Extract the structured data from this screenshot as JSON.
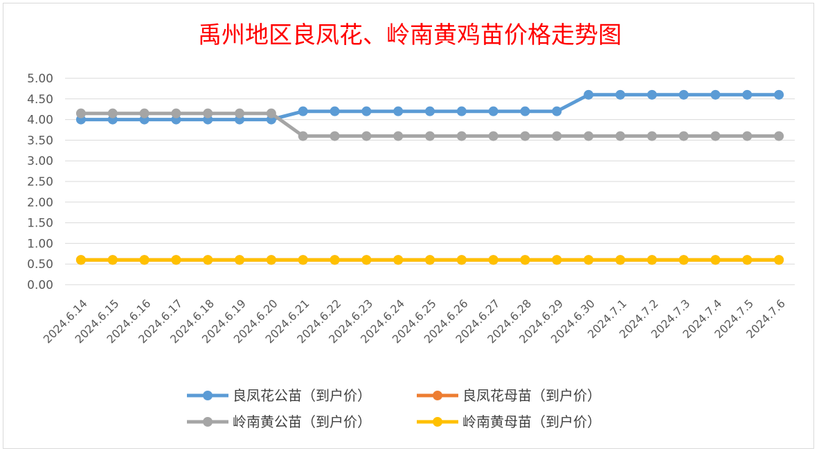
{
  "chart_data": {
    "type": "line",
    "title": "禹州地区良凤花、岭南黄鸡苗价格走势图",
    "xlabel": "",
    "ylabel": "",
    "ylim": [
      0,
      5
    ],
    "y_ticks": [
      "0.00",
      "0.50",
      "1.00",
      "1.50",
      "2.00",
      "2.50",
      "3.00",
      "3.50",
      "4.00",
      "4.50",
      "5.00"
    ],
    "grid": true,
    "legend_position": "bottom",
    "categories": [
      "2024.6.14",
      "2024.6.15",
      "2024.6.16",
      "2024.6.17",
      "2024.6.18",
      "2024.6.19",
      "2024.6.20",
      "2024.6.21",
      "2024.6.22",
      "2024.6.23",
      "2024.6.24",
      "2024.6.25",
      "2024.6.26",
      "2024.6.27",
      "2024.6.28",
      "2024.6.29",
      "2024.6.30",
      "2024.7.1",
      "2024.7.2",
      "2024.7.3",
      "2024.7.4",
      "2024.7.5",
      "2024.7.6"
    ],
    "series": [
      {
        "name": "良凤花公苗（到户价）",
        "color": "#5b9bd5",
        "values": [
          4.0,
          4.0,
          4.0,
          4.0,
          4.0,
          4.0,
          4.0,
          4.2,
          4.2,
          4.2,
          4.2,
          4.2,
          4.2,
          4.2,
          4.2,
          4.2,
          4.6,
          4.6,
          4.6,
          4.6,
          4.6,
          4.6,
          4.6
        ]
      },
      {
        "name": "良凤花母苗（到户价）",
        "color": "#ed7d31",
        "values": [
          0.6,
          0.6,
          0.6,
          0.6,
          0.6,
          0.6,
          0.6,
          0.6,
          0.6,
          0.6,
          0.6,
          0.6,
          0.6,
          0.6,
          0.6,
          0.6,
          0.6,
          0.6,
          0.6,
          0.6,
          0.6,
          0.6,
          0.6
        ]
      },
      {
        "name": "岭南黄公苗（到户价）",
        "color": "#a5a5a5",
        "values": [
          4.15,
          4.15,
          4.15,
          4.15,
          4.15,
          4.15,
          4.15,
          3.6,
          3.6,
          3.6,
          3.6,
          3.6,
          3.6,
          3.6,
          3.6,
          3.6,
          3.6,
          3.6,
          3.6,
          3.6,
          3.6,
          3.6,
          3.6
        ]
      },
      {
        "name": "岭南黄母苗（到户价）",
        "color": "#ffc000",
        "values": [
          0.6,
          0.6,
          0.6,
          0.6,
          0.6,
          0.6,
          0.6,
          0.6,
          0.6,
          0.6,
          0.6,
          0.6,
          0.6,
          0.6,
          0.6,
          0.6,
          0.6,
          0.6,
          0.6,
          0.6,
          0.6,
          0.6,
          0.6
        ]
      }
    ]
  }
}
